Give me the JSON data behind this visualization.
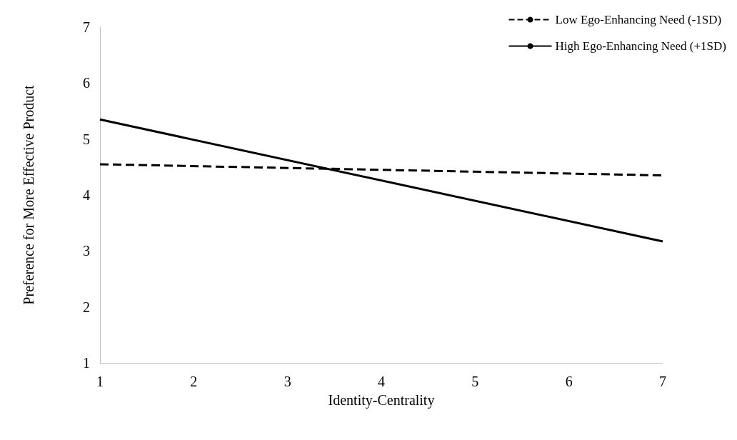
{
  "chart_data": {
    "type": "line",
    "xlabel": "Identity-Centrality",
    "ylabel": "Preference for More Effective Product",
    "x": [
      1,
      7
    ],
    "series": [
      {
        "name": "Low Ego-Enhancing Need (-1SD)",
        "color": "#000000",
        "values": [
          4.55,
          4.35
        ],
        "line_style": "dashed"
      },
      {
        "name": "High Ego-Enhancing Need (+1SD)",
        "color": "#000000",
        "values": [
          5.35,
          3.17
        ],
        "line_style": "solid"
      }
    ],
    "xlim": [
      1,
      7
    ],
    "xticks": [
      1,
      2,
      3,
      4,
      5,
      6,
      7
    ],
    "ylim": [
      1,
      7
    ],
    "yticks": [
      1,
      2,
      3,
      4,
      5,
      6,
      7
    ],
    "grid": false,
    "legend": "top right",
    "marker": "none"
  }
}
